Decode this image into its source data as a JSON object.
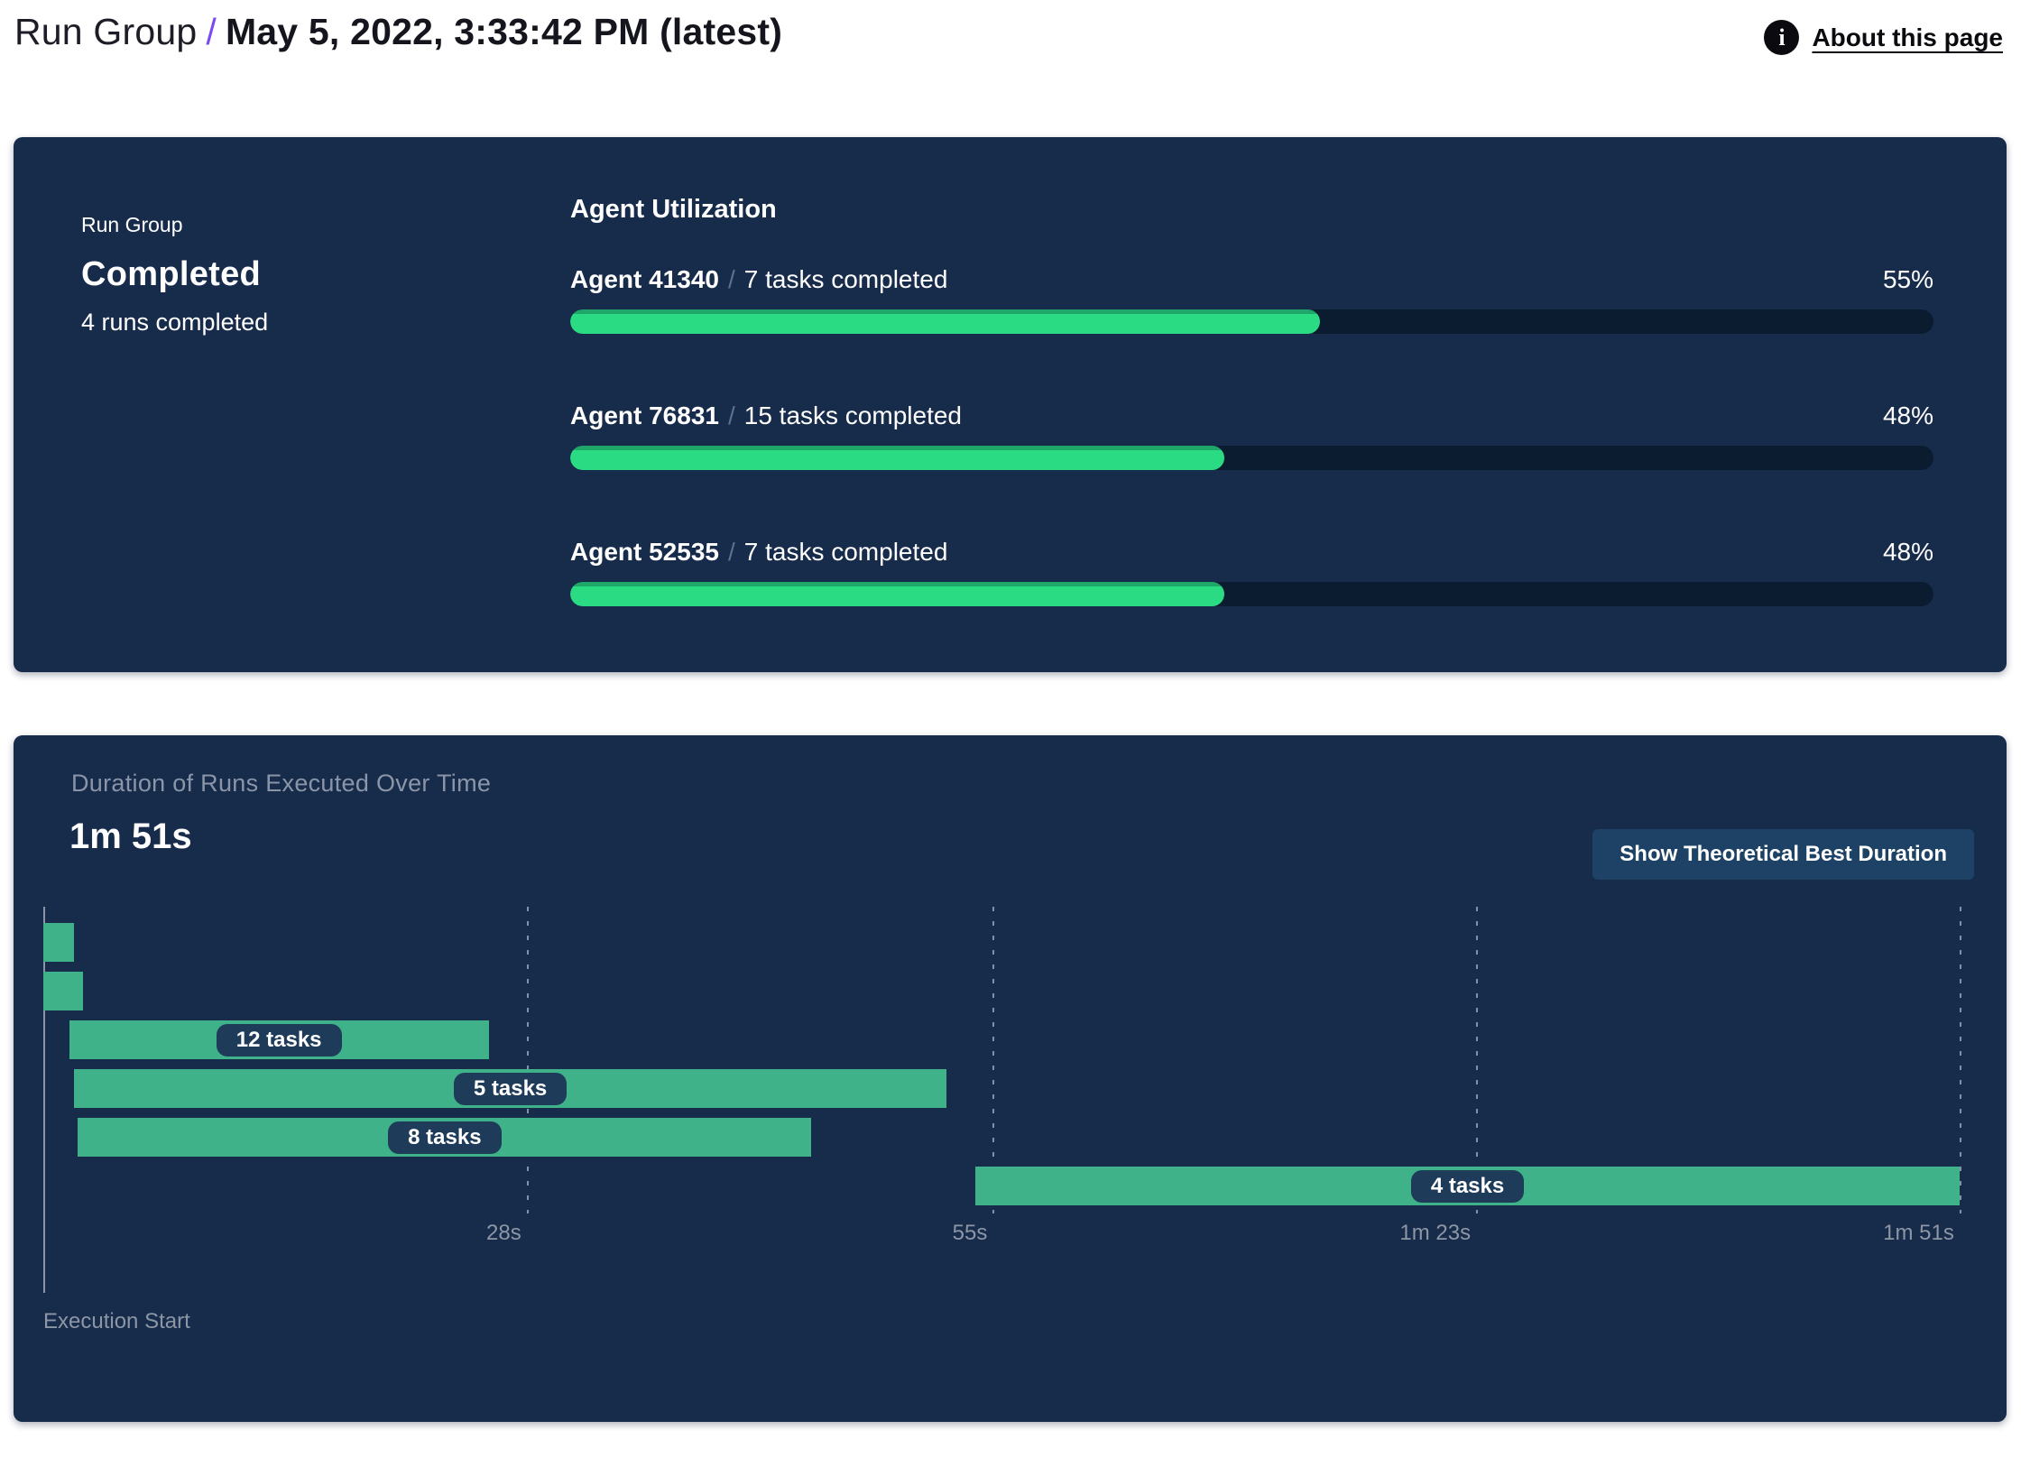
{
  "header": {
    "breadcrumb_root": "Run Group",
    "separator": "/",
    "title": "May 5, 2022, 3:33:42 PM (latest)",
    "info_icon": "info-icon",
    "about_label": "About this page"
  },
  "summary_panel": {
    "label": "Run Group",
    "status": "Completed",
    "runs_completed": "4 runs completed",
    "utilization": {
      "heading": "Agent Utilization",
      "separator": "/",
      "agents": [
        {
          "name": "Agent 41340",
          "tasks": "7 tasks completed",
          "percent": 55,
          "percent_label": "55%"
        },
        {
          "name": "Agent 76831",
          "tasks": "15 tasks completed",
          "percent": 48,
          "percent_label": "48%"
        },
        {
          "name": "Agent 52535",
          "tasks": "7 tasks completed",
          "percent": 48,
          "percent_label": "48%"
        }
      ]
    }
  },
  "duration_panel": {
    "title": "Duration of Runs Executed Over Time",
    "total_duration": "1m 51s",
    "button_label": "Show Theoretical Best Duration",
    "execution_start_label": "Execution Start"
  },
  "chart_data": [
    {
      "type": "bar",
      "subtype": "horizontal-progress",
      "title": "Agent Utilization",
      "categories": [
        "Agent 41340",
        "Agent 76831",
        "Agent 52535"
      ],
      "values": [
        55,
        48,
        48
      ],
      "value_unit": "%",
      "xlim": [
        0,
        100
      ]
    },
    {
      "type": "bar",
      "subtype": "gantt",
      "title": "Duration of Runs Executed Over Time",
      "total_duration_label": "1m 51s",
      "xmax_s": 112,
      "axis_ticks": [
        {
          "label": "28s",
          "t": 28
        },
        {
          "label": "55s",
          "t": 55
        },
        {
          "label": "1m 23s",
          "t": 83
        },
        {
          "label": "1m 51s",
          "t": 111
        }
      ],
      "bars": [
        {
          "start_s": 0,
          "end_s": 1.8,
          "label": ""
        },
        {
          "start_s": 0,
          "end_s": 2.3,
          "label": ""
        },
        {
          "start_s": 1.5,
          "end_s": 25.8,
          "label": "12 tasks"
        },
        {
          "start_s": 1.8,
          "end_s": 52.3,
          "label": "5 tasks"
        },
        {
          "start_s": 2.0,
          "end_s": 44.5,
          "label": "8 tasks"
        },
        {
          "start_s": 54.0,
          "end_s": 111.0,
          "label": "4 tasks"
        }
      ]
    }
  ],
  "colors": {
    "panel_navy": "#172b4b",
    "track_navy": "#0c1c30",
    "pill_navy": "#1e3c59",
    "progress_green": "#2bdb84",
    "progress_green_edge": "#1fa76a",
    "gantt_green": "#3fb28a",
    "accent_purple": "#7a4bf0",
    "muted_gray": "#8c96a5",
    "button_navy": "#1d4265"
  }
}
